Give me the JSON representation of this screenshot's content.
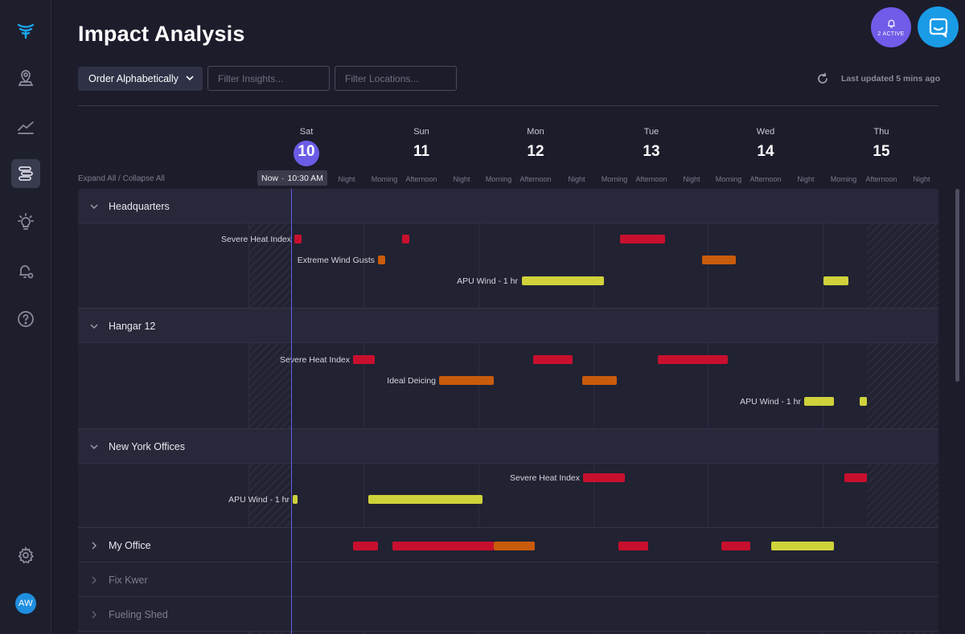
{
  "header": {
    "title": "Impact Analysis"
  },
  "alerts": {
    "label": "2 ACTIVE"
  },
  "sidebar": {
    "icons": [
      "logo-icon",
      "location-pin-icon",
      "trending-chart-icon",
      "timeline-icon",
      "lightbulb-icon",
      "alert-settings-icon",
      "help-icon",
      "settings-icon"
    ],
    "active": "timeline-icon",
    "avatar": "AW"
  },
  "toolbar": {
    "order_label": "Order Alphabetically",
    "filter_insights_placeholder": "Filter Insights...",
    "filter_locations_placeholder": "Filter Locations...",
    "last_updated": "Last updated 5 mins ago"
  },
  "timeline": {
    "expand_collapse": "Expand All / Collapse All",
    "now_label": "Now",
    "now_separator": "·",
    "now_time": "10:30 AM",
    "days": [
      {
        "name": "Sat",
        "num": "10"
      },
      {
        "name": "Sun",
        "num": "11"
      },
      {
        "name": "Mon",
        "num": "12"
      },
      {
        "name": "Tue",
        "num": "13"
      },
      {
        "name": "Wed",
        "num": "14"
      },
      {
        "name": "Thu",
        "num": "15"
      }
    ],
    "periods": [
      "Night",
      "Morning",
      "Afternoon",
      "Night",
      "Morning",
      "Afternoon",
      "Night",
      "Morning",
      "Afternoon",
      "Night",
      "Morning",
      "Afternoon",
      "Night",
      "Morning",
      "Afternoon",
      "Night"
    ]
  },
  "colors": {
    "severe": "#c8102e",
    "moderate": "#c95b0c",
    "low": "#cfd23a",
    "accent": "#6a5ce6"
  },
  "groups": [
    {
      "name": "Headquarters",
      "expanded": true,
      "rows": [
        {
          "label": "Severe Heat Index",
          "bars": [
            [
              "red",
              0
            ],
            [
              "red",
              0
            ],
            [
              "red",
              0
            ]
          ]
        },
        {
          "label": "Extreme Wind Gusts",
          "bars": [
            [
              "orange",
              0
            ],
            [
              "orange",
              0
            ]
          ]
        },
        {
          "label": "APU Wind - 1 hr",
          "bars": [
            [
              "yellow",
              0
            ],
            [
              "yellow",
              0
            ]
          ]
        }
      ]
    },
    {
      "name": "Hangar 12",
      "expanded": true,
      "rows": [
        {
          "label": "Severe Heat Index",
          "bars": []
        },
        {
          "label": "Ideal Deicing",
          "bars": []
        },
        {
          "label": "APU Wind - 1 hr",
          "bars": []
        }
      ]
    },
    {
      "name": "New York Offices",
      "expanded": true,
      "rows": [
        {
          "label": "Severe Heat Index",
          "bars": []
        },
        {
          "label": "APU Wind - 1 hr",
          "bars": []
        }
      ]
    },
    {
      "name": "My Office",
      "expanded": false
    },
    {
      "name": "Fix Kwer",
      "expanded": false
    },
    {
      "name": "Fueling Shed",
      "expanded": false
    }
  ]
}
